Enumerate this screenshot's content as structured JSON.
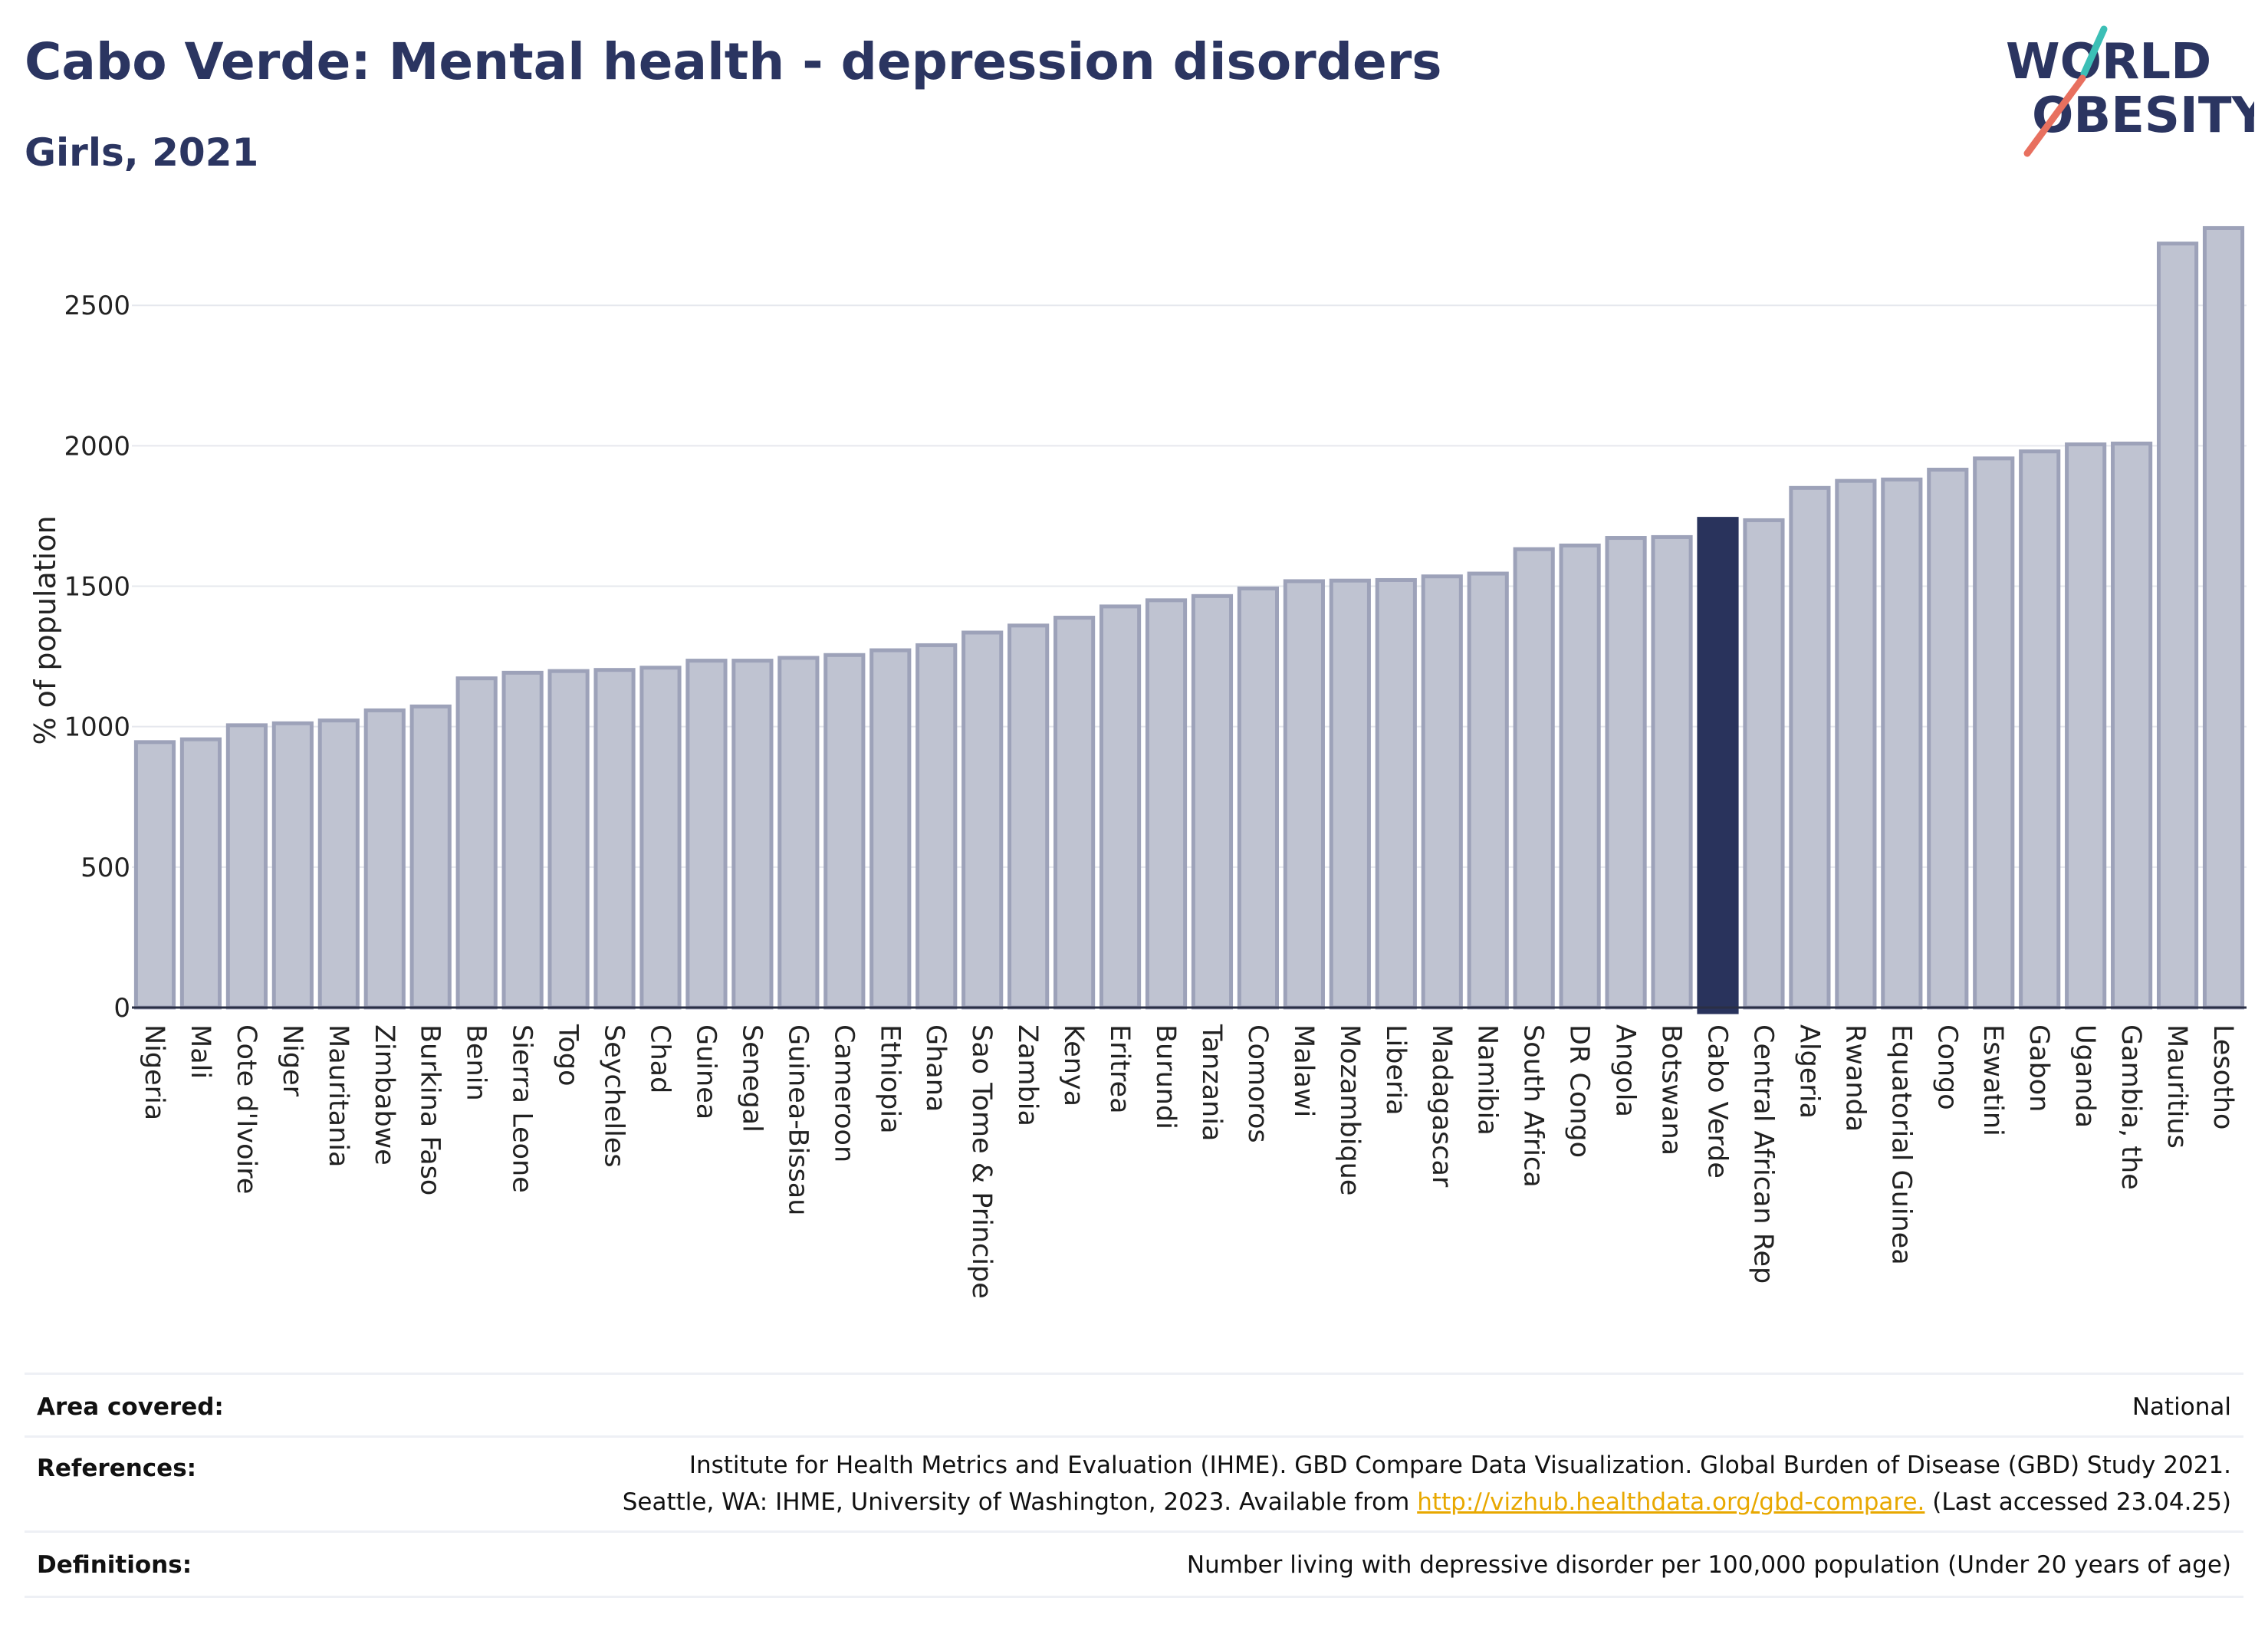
{
  "header": {
    "title": "Cabo Verde: Mental health - depression disorders",
    "subtitle": "Girls, 2021"
  },
  "logo": {
    "line1": "WORLD",
    "line2": "OBESITY"
  },
  "chart_data": {
    "type": "bar",
    "ylabel": "% of population",
    "xlabel": "",
    "ylim": [
      0,
      2850
    ],
    "yticks": [
      0,
      500,
      1000,
      1500,
      2000,
      2500
    ],
    "grid": true,
    "highlight": "Cabo Verde",
    "highlight_color": "#29335c",
    "bar_color": "#bfc3d1",
    "bar_edge_color": "#9da2b9",
    "categories": [
      "Nigeria",
      "Mali",
      "Cote d'Ivoire",
      "Niger",
      "Mauritania",
      "Zimbabwe",
      "Burkina Faso",
      "Benin",
      "Sierra Leone",
      "Togo",
      "Seychelles",
      "Chad",
      "Guinea",
      "Senegal",
      "Guinea-Bissau",
      "Cameroon",
      "Ethiopia",
      "Ghana",
      "Sao Tome & Principe",
      "Zambia",
      "Kenya",
      "Eritrea",
      "Burundi",
      "Tanzania",
      "Comoros",
      "Malawi",
      "Mozambique",
      "Liberia",
      "Madagascar",
      "Namibia",
      "South Africa",
      "DR Congo",
      "Angola",
      "Botswana",
      "Cabo Verde",
      "Central African Rep",
      "Algeria",
      "Rwanda",
      "Equatorial Guinea",
      "Congo",
      "Eswatini",
      "Gabon",
      "Uganda",
      "Gambia, the",
      "Mauritius",
      "Lesotho"
    ],
    "values": [
      945,
      955,
      1005,
      1012,
      1022,
      1058,
      1072,
      1172,
      1192,
      1198,
      1202,
      1210,
      1235,
      1235,
      1245,
      1255,
      1272,
      1290,
      1335,
      1360,
      1388,
      1428,
      1450,
      1465,
      1492,
      1518,
      1520,
      1522,
      1535,
      1545,
      1632,
      1645,
      1672,
      1675,
      1740,
      1735,
      1850,
      1875,
      1880,
      1915,
      1955,
      1980,
      2005,
      2008,
      2720,
      2775
    ]
  },
  "info": {
    "area_label": "Area covered:",
    "area_value": "National",
    "references_label": "References:",
    "references_line1": "Institute for Health Metrics and Evaluation (IHME). GBD Compare Data Visualization. Global Burden of Disease (GBD) Study 2021.",
    "references_line2_pre": "Seattle, WA: IHME, University of Washington, 2023. Available from ",
    "references_link": "http://vizhub.healthdata.org/gbd-compare.",
    "references_line2_post": " (Last accessed 23.04.25)",
    "definitions_label": "Definitions:",
    "definitions_value": "Number living with depressive disorder per 100,000 population (Under 20 years of age)"
  }
}
